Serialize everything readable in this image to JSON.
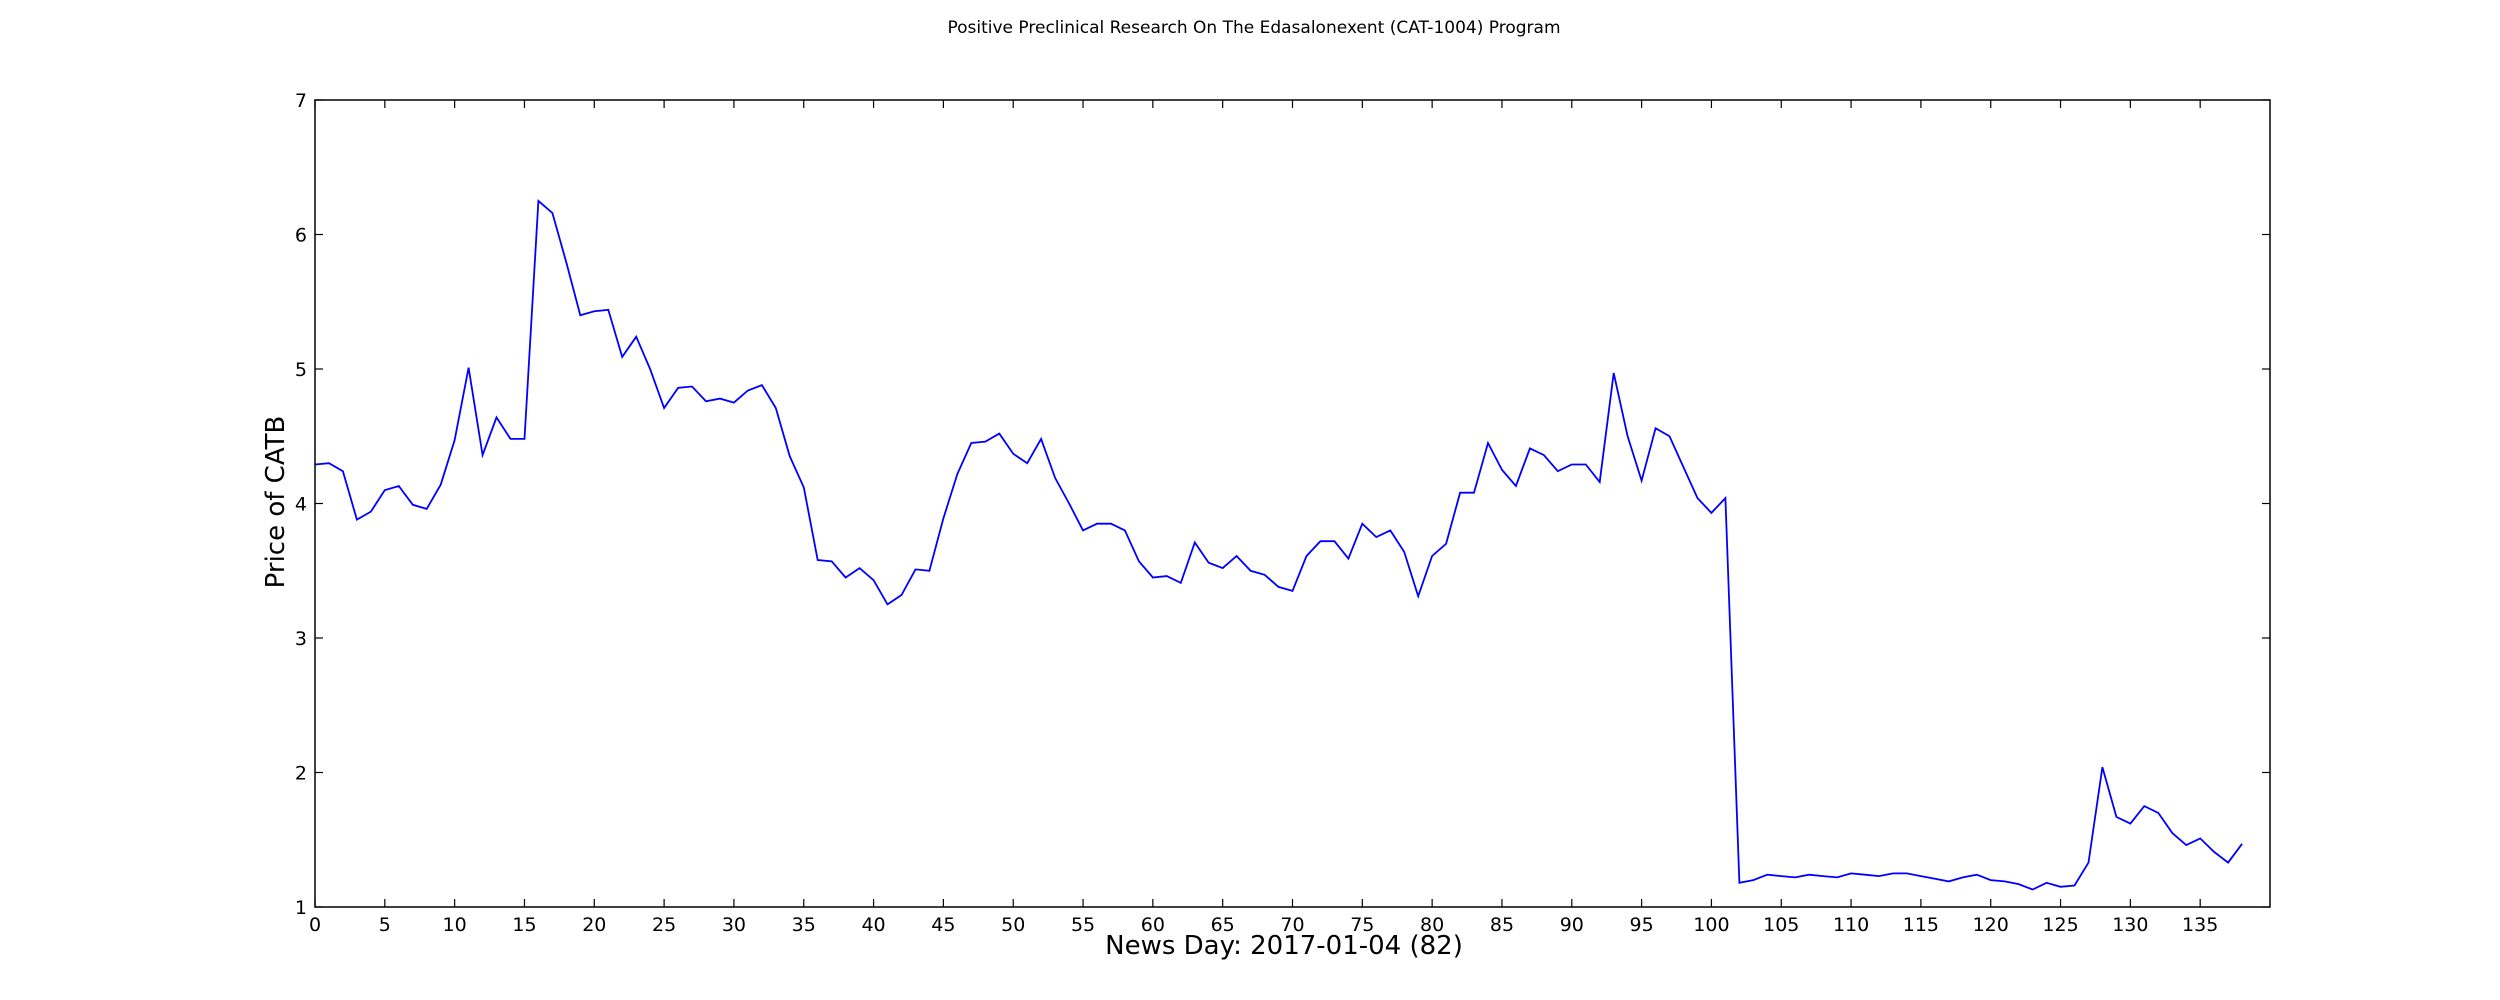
{
  "chart_data": {
    "type": "line",
    "title": "Positive Preclinical Research On The Edasalonexent (CAT-1004) Program",
    "xlabel": "News Day: 2017-01-04 (82)",
    "ylabel": "Price of CATB",
    "xlim": [
      0,
      140
    ],
    "ylim": [
      1,
      7
    ],
    "xticks": [
      0,
      5,
      10,
      15,
      20,
      25,
      30,
      35,
      40,
      45,
      50,
      55,
      60,
      65,
      70,
      75,
      80,
      85,
      90,
      95,
      100,
      105,
      110,
      115,
      120,
      125,
      130,
      135
    ],
    "yticks": [
      1,
      2,
      3,
      4,
      5,
      6,
      7
    ],
    "grid": false,
    "line_color": "#0000ff",
    "series": [
      {
        "values": [
          4.29,
          4.3,
          4.24,
          3.88,
          3.94,
          4.1,
          4.13,
          3.99,
          3.96,
          4.14,
          4.47,
          5.01,
          4.36,
          4.64,
          4.48,
          4.48,
          6.25,
          6.16,
          5.79,
          5.4,
          5.43,
          5.44,
          5.09,
          5.24,
          5.0,
          4.71,
          4.86,
          4.87,
          4.76,
          4.78,
          4.75,
          4.84,
          4.88,
          4.71,
          4.35,
          4.12,
          3.58,
          3.57,
          3.45,
          3.52,
          3.43,
          3.25,
          3.32,
          3.51,
          3.5,
          3.89,
          4.22,
          4.45,
          4.46,
          4.52,
          4.37,
          4.3,
          4.48,
          4.19,
          4.0,
          3.8,
          3.85,
          3.85,
          3.8,
          3.57,
          3.45,
          3.46,
          3.41,
          3.71,
          3.56,
          3.52,
          3.61,
          3.5,
          3.47,
          3.38,
          3.35,
          3.61,
          3.72,
          3.72,
          3.59,
          3.85,
          3.75,
          3.8,
          3.64,
          3.31,
          3.61,
          3.7,
          4.08,
          4.08,
          4.45,
          4.25,
          4.13,
          4.41,
          4.36,
          4.24,
          4.29,
          4.29,
          4.16,
          4.97,
          4.5,
          4.17,
          4.56,
          4.5,
          4.27,
          4.04,
          3.93,
          4.04,
          1.18,
          1.2,
          1.24,
          1.23,
          1.22,
          1.24,
          1.23,
          1.22,
          1.25,
          1.24,
          1.23,
          1.25,
          1.25,
          1.23,
          1.21,
          1.19,
          1.22,
          1.24,
          1.2,
          1.19,
          1.17,
          1.13,
          1.18,
          1.15,
          1.16,
          1.33,
          2.04,
          1.67,
          1.62,
          1.75,
          1.7,
          1.55,
          1.46,
          1.51,
          1.41,
          1.33,
          1.47
        ]
      }
    ]
  }
}
